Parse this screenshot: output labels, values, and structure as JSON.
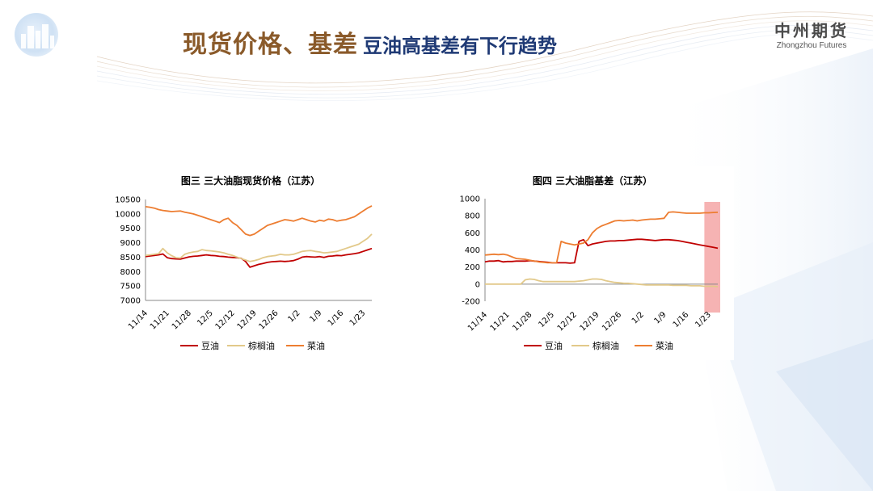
{
  "header": {
    "title_main": "现货价格、基差",
    "title_sub": "豆油高基差有下行趋势",
    "brand_cn": "中州期货",
    "brand_en": "Zhongzhou Futures"
  },
  "colors": {
    "title_main": "#8a5a2a",
    "title_sub": "#1f3a75",
    "soy": "#c00000",
    "palm": "#e2c98a",
    "rapeseed": "#ed7d31",
    "highlight": "#f4a6a6"
  },
  "chart_data": [
    {
      "type": "line",
      "title": "图三 三大油脂现货价格（江苏）",
      "x_ticks": [
        "11/14",
        "11/21",
        "11/28",
        "12/5",
        "12/12",
        "12/19",
        "12/26",
        "1/2",
        "1/9",
        "1/16",
        "1/23"
      ],
      "y_ticks": [
        "7000",
        "7500",
        "8000",
        "8500",
        "9000",
        "9500",
        "10000",
        "10500"
      ],
      "ylim": [
        7000,
        10500
      ],
      "n_points": 53,
      "legend_position": "bottom",
      "series": [
        {
          "name": "豆油",
          "color": "#c00000",
          "values": [
            8520,
            8540,
            8560,
            8580,
            8610,
            8480,
            8450,
            8440,
            8430,
            8470,
            8510,
            8530,
            8540,
            8560,
            8580,
            8560,
            8550,
            8530,
            8520,
            8500,
            8490,
            8480,
            8460,
            8350,
            8150,
            8200,
            8250,
            8280,
            8320,
            8340,
            8350,
            8360,
            8350,
            8360,
            8380,
            8430,
            8500,
            8520,
            8510,
            8500,
            8520,
            8490,
            8530,
            8540,
            8560,
            8550,
            8580,
            8600,
            8620,
            8650,
            8700,
            8750,
            8800
          ]
        },
        {
          "name": "棕榈油",
          "color": "#e2c98a",
          "values": [
            8560,
            8580,
            8600,
            8620,
            8800,
            8650,
            8550,
            8480,
            8470,
            8600,
            8650,
            8680,
            8700,
            8760,
            8730,
            8720,
            8700,
            8680,
            8650,
            8600,
            8560,
            8500,
            8450,
            8400,
            8350,
            8380,
            8420,
            8480,
            8520,
            8540,
            8560,
            8600,
            8580,
            8580,
            8600,
            8650,
            8700,
            8720,
            8730,
            8700,
            8680,
            8650,
            8660,
            8680,
            8700,
            8750,
            8800,
            8850,
            8900,
            8950,
            9050,
            9150,
            9300
          ]
        },
        {
          "name": "菜油",
          "color": "#ed7d31",
          "values": [
            10250,
            10230,
            10200,
            10150,
            10120,
            10100,
            10080,
            10090,
            10100,
            10060,
            10030,
            10000,
            9950,
            9900,
            9850,
            9800,
            9750,
            9700,
            9800,
            9850,
            9700,
            9600,
            9450,
            9300,
            9250,
            9300,
            9400,
            9500,
            9600,
            9650,
            9700,
            9750,
            9800,
            9780,
            9750,
            9800,
            9850,
            9800,
            9750,
            9720,
            9780,
            9750,
            9820,
            9800,
            9750,
            9780,
            9800,
            9850,
            9900,
            10000,
            10100,
            10200,
            10280
          ]
        }
      ]
    },
    {
      "type": "line",
      "title": "图四 三大油脂基差（江苏）",
      "x_ticks": [
        "11/14",
        "11/21",
        "11/28",
        "12/5",
        "12/12",
        "12/19",
        "12/26",
        "1/2",
        "1/9",
        "1/16",
        "1/23"
      ],
      "y_ticks": [
        "-200",
        "0",
        "200",
        "400",
        "600",
        "800",
        "1000"
      ],
      "ylim": [
        -200,
        1000
      ],
      "n_points": 53,
      "legend_position": "bottom",
      "highlight_last_points": 4,
      "series": [
        {
          "name": "豆油",
          "color": "#c00000",
          "values": [
            260,
            270,
            270,
            275,
            260,
            265,
            265,
            270,
            270,
            270,
            275,
            270,
            265,
            260,
            255,
            250,
            250,
            250,
            250,
            245,
            250,
            500,
            520,
            450,
            470,
            480,
            490,
            500,
            505,
            505,
            510,
            510,
            515,
            520,
            525,
            525,
            520,
            515,
            510,
            515,
            520,
            520,
            515,
            510,
            500,
            490,
            480,
            470,
            460,
            450,
            440,
            430,
            420
          ]
        },
        {
          "name": "棕榈油",
          "color": "#e2c98a",
          "values": [
            0,
            0,
            0,
            0,
            0,
            0,
            0,
            0,
            0,
            50,
            60,
            55,
            40,
            30,
            30,
            30,
            30,
            30,
            30,
            30,
            30,
            35,
            40,
            50,
            60,
            60,
            55,
            40,
            30,
            20,
            15,
            10,
            10,
            5,
            0,
            -5,
            -10,
            -10,
            -10,
            -10,
            -10,
            -10,
            -15,
            -15,
            -15,
            -15,
            -20,
            -20,
            -20,
            -25,
            -25,
            -25,
            -30
          ]
        },
        {
          "name": "菜油",
          "color": "#ed7d31",
          "values": [
            340,
            345,
            350,
            345,
            350,
            340,
            320,
            300,
            295,
            290,
            280,
            270,
            260,
            255,
            250,
            250,
            250,
            500,
            480,
            470,
            460,
            470,
            480,
            520,
            600,
            650,
            680,
            700,
            720,
            740,
            745,
            740,
            745,
            750,
            740,
            750,
            755,
            760,
            760,
            765,
            770,
            840,
            845,
            840,
            835,
            830,
            830,
            830,
            830,
            835,
            835,
            838,
            840
          ]
        }
      ]
    }
  ]
}
